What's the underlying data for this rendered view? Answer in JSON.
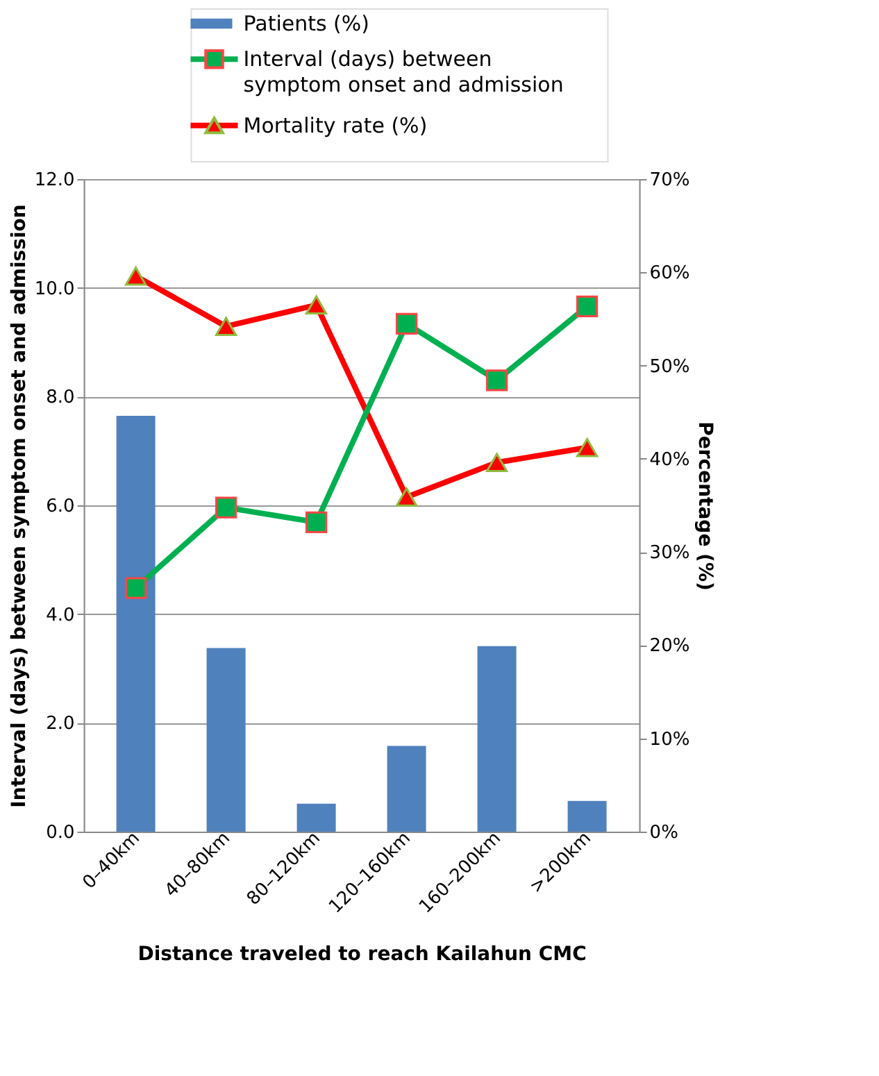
{
  "chart_data": {
    "type": "bar",
    "xlabel": "Distance traveled to reach Kailahun CMC",
    "ylabel": "Interval (days) between symptom onset and admission",
    "y2label": "Percentage (%)",
    "categories": [
      "0–40km",
      "40–80km",
      "80–120km",
      "120–160km",
      "160–200km",
      ">200km"
    ],
    "series": [
      {
        "name": "Patients (%)",
        "axis": "y2",
        "color": "#4f81bd",
        "values": [
          44.6,
          19.7,
          3.0,
          9.2,
          19.9,
          3.3
        ]
      },
      {
        "name": "Interval (days) between symptom onset and admission",
        "type": "line",
        "marker": "square",
        "color": "#00b050",
        "values": [
          4.48,
          5.96,
          5.69,
          9.34,
          8.3,
          9.66
        ]
      },
      {
        "name": "Mortality rate (%)",
        "type": "line",
        "marker": "triangle",
        "axis": "y2",
        "color": "#ff0000",
        "values": [
          59.6,
          54.2,
          56.5,
          35.9,
          39.6,
          41.2
        ]
      }
    ],
    "ylim": [
      0,
      12
    ],
    "yticks": [
      {
        "value": 0,
        "label": "0.0"
      },
      {
        "value": 2,
        "label": "2.0"
      },
      {
        "value": 4,
        "label": "4.0"
      },
      {
        "value": 6,
        "label": "6.0"
      },
      {
        "value": 8,
        "label": "8.0"
      },
      {
        "value": 10,
        "label": "10.0"
      },
      {
        "value": 12,
        "label": "12.0"
      }
    ],
    "y2lim": [
      0,
      70
    ],
    "y2ticks": [
      {
        "value": 0,
        "label": "0%"
      },
      {
        "value": 10,
        "label": "10%"
      },
      {
        "value": 20,
        "label": "20%"
      },
      {
        "value": 30,
        "label": "30%"
      },
      {
        "value": 40,
        "label": "40%"
      },
      {
        "value": 50,
        "label": "50%"
      },
      {
        "value": 60,
        "label": "60%"
      },
      {
        "value": 70,
        "label": "70%"
      }
    ],
    "grid": "y",
    "legend": "top"
  }
}
